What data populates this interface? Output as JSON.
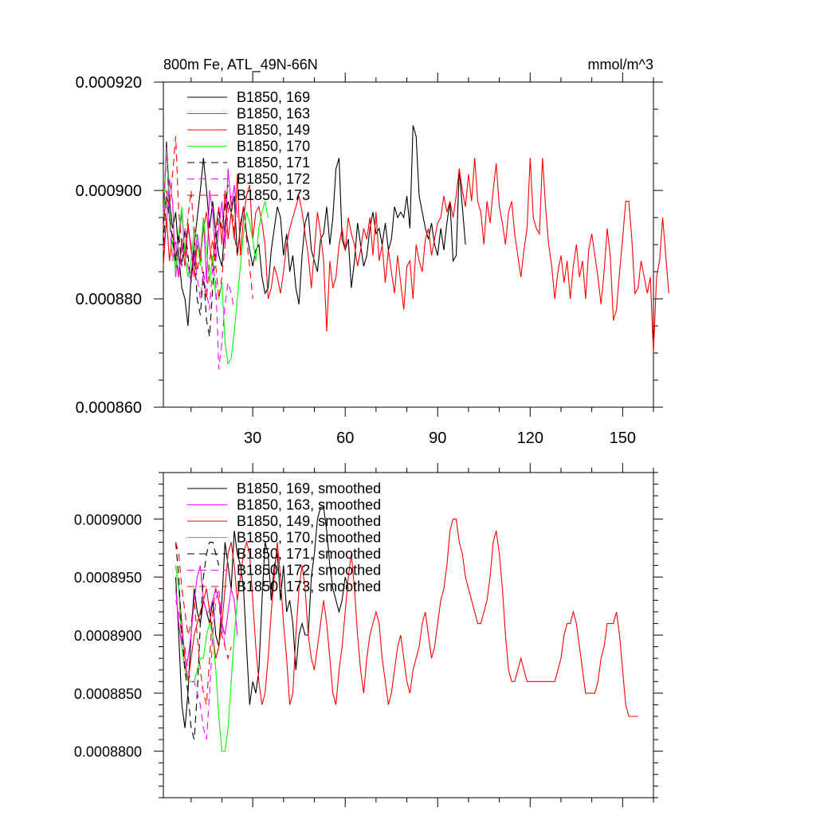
{
  "chart_data": [
    {
      "type": "line",
      "title": "800m Fe, ATL_49N-66N",
      "units": "mmol/m^3",
      "xlabel": "",
      "ylabel": "",
      "xlim": [
        1,
        160
      ],
      "ylim": [
        0.00086,
        0.00092
      ],
      "xticks": [
        30,
        60,
        90,
        120,
        150
      ],
      "xtick_labels": [
        "30",
        "60",
        "90",
        "120",
        "150"
      ],
      "yticks": [
        0.00086,
        0.00088,
        0.0009,
        0.00092
      ],
      "ytick_labels": [
        "0.000860",
        "0.000880",
        "0.000900",
        "0.000920"
      ],
      "legend": "top-left",
      "series": [
        {
          "name": "B1850, 169",
          "color": "#000000",
          "dash": "solid",
          "x_start": 1,
          "values": [
            0.000893,
            0.000909,
            0.000898,
            0.000893,
            0.000896,
            0.000888,
            0.000882,
            0.00088,
            0.000875,
            0.000884,
            0.00089,
            0.000895,
            0.0009,
            0.000906,
            0.0009,
            0.000893,
            0.000898,
            0.000892,
            0.000888,
            0.000886,
            0.000894,
            0.000898,
            0.000896,
            0.000899,
            0.000888,
            0.000893,
            0.000897,
            0.000892,
            0.000889,
            0.000886,
            0.000889,
            0.00089,
            0.000884,
            0.000881,
            0.000882,
            0.000889,
            0.000893,
            0.000897,
            0.000895,
            0.000888,
            0.000892,
            0.000885,
            0.000888,
            0.000882,
            0.000879,
            0.000888,
            0.000894,
            0.000896,
            0.000889,
            0.000887,
            0.000885,
            0.000891,
            0.000892,
            0.000897,
            0.00089,
            0.000895,
            0.000904,
            0.000906,
            0.000891,
            0.000889,
            0.000891,
            0.000882,
            0.000887,
            0.000894,
            0.00089,
            0.000886,
            0.000888,
            0.000893,
            0.000896,
            0.000892,
            0.000893,
            0.00089,
            0.000894,
            0.000889,
            0.000891,
            0.000897,
            0.000895,
            0.000896,
            0.000895,
            0.000899,
            0.000893,
            0.000912,
            0.00091,
            0.000899,
            0.000896,
            0.000893,
            0.000891,
            0.000894,
            0.00089,
            0.000888,
            0.000893,
            0.000889,
            0.000894,
            0.000898,
            0.000887,
            0.000888,
            0.000904,
            0.000897,
            0.00089
          ]
        },
        {
          "name": "B1850, 163",
          "color": "#ff00ff",
          "dash": "solid",
          "x_start": 1,
          "values": [
            0.000889,
            0.000894,
            0.000902,
            0.000898,
            0.000884,
            0.000891,
            0.000896,
            0.000888,
            0.000893,
            0.00089,
            0.000886,
            0.000892,
            0.000888,
            0.000895,
            0.000883,
            0.0009,
            0.000896,
            0.000887,
            0.000893,
            0.000898,
            0.00089,
            0.000904,
            0.000897,
            0.000901,
            0.000895
          ]
        },
        {
          "name": "B1850, 149",
          "color": "#ff0000",
          "dash": "solid",
          "x_start": 1,
          "values": [
            0.000886,
            0.000895,
            0.000887,
            0.000892,
            0.000888,
            0.000884,
            0.000891,
            0.000886,
            0.000894,
            0.000889,
            0.000884,
            0.00089,
            0.000887,
            0.000893,
            0.000896,
            0.00089,
            0.000886,
            0.000893,
            0.000897,
            0.00089,
            0.0009,
            0.000891,
            0.000896,
            0.000891,
            0.000903,
            0.000888,
            0.000895,
            0.000899,
            0.000901,
            0.000891,
            0.000896,
            0.000897,
            0.000894,
            0.00089,
            0.00088,
            0.000882,
            0.000886,
            0.000884,
            0.000881,
            0.000885,
            0.00089,
            0.000893,
            0.000895,
            0.000897,
            0.000899,
            0.000896,
            0.000892,
            0.000888,
            0.000882,
            0.000889,
            0.000896,
            0.000892,
            0.000887,
            0.000874,
            0.000887,
            0.000882,
            0.000884,
            0.00089,
            0.000893,
            0.000889,
            0.000895,
            0.000892,
            0.00089,
            0.000886,
            0.000889,
            0.000893,
            0.000891,
            0.000895,
            0.000888,
            0.000896,
            0.000887,
            0.00089,
            0.000883,
            0.000889,
            0.000885,
            0.000881,
            0.000888,
            0.000883,
            0.000878,
            0.000886,
            0.000887,
            0.00088,
            0.00089,
            0.000887,
            0.000885,
            0.000891,
            0.000893,
            0.000888,
            0.000891,
            0.000894,
            0.000895,
            0.000899,
            0.000896,
            0.000898,
            0.000895,
            0.000899,
            0.000904,
            0.0009,
            0.000897,
            0.000903,
            0.000898,
            0.000906,
            0.000898,
            0.000896,
            0.00089,
            0.000898,
            0.000894,
            0.0009,
            0.000905,
            0.000897,
            0.000894,
            0.00089,
            0.000896,
            0.000898,
            0.000892,
            0.000888,
            0.000884,
            0.000889,
            0.000893,
            0.000906,
            0.000895,
            0.000893,
            0.000892,
            0.000906,
            0.000897,
            0.00089,
            0.000886,
            0.00088,
            0.000885,
            0.000888,
            0.000883,
            0.000887,
            0.00088,
            0.000886,
            0.00089,
            0.000884,
            0.000887,
            0.00088,
            0.000889,
            0.000892,
            0.000888,
            0.000884,
            0.000879,
            0.000885,
            0.000893,
            0.000888,
            0.000876,
            0.000878,
            0.000885,
            0.000891,
            0.000898,
            0.000898,
            0.000891,
            0.000881,
            0.000882,
            0.000887,
            0.000884,
            0.000881,
            0.000884,
            0.00087,
            0.000884,
            0.000887,
            0.000895,
            0.000888,
            0.000881
          ]
        },
        {
          "name": "B1850, 170",
          "color": "#00ff00",
          "dash": "solid",
          "x_start": 1,
          "values": [
            0.000895,
            0.000908,
            0.000896,
            0.00089,
            0.000885,
            0.000892,
            0.000897,
            0.000888,
            0.000884,
            0.000887,
            0.000893,
            0.000891,
            0.000886,
            0.000895,
            0.000889,
            0.000883,
            0.000888,
            0.00088,
            0.00088,
            0.000883,
            0.000872,
            0.000868,
            0.000869,
            0.000874,
            0.00088,
            0.000886,
            0.000892,
            0.000896,
            0.000894,
            0.000891,
            0.000887,
            0.000893,
            0.000896,
            0.000898,
            0.000895
          ]
        },
        {
          "name": "B1850, 171",
          "color": "#000000",
          "dash": "dashed",
          "x_start": 1,
          "values": [
            0.00089,
            0.000899,
            0.000895,
            0.000891,
            0.000887,
            0.000892,
            0.000886,
            0.000893,
            0.000888,
            0.000883,
            0.000889,
            0.00088,
            0.000877,
            0.000885,
            0.000876,
            0.000873,
            0.000882,
            0.00089,
            0.000896,
            0.000893,
            0.000897,
            0.000901
          ]
        },
        {
          "name": "B1850, 172",
          "color": "#ff00ff",
          "dash": "dashed",
          "x_start": 1,
          "values": [
            0.000896,
            0.000908,
            0.000894,
            0.000887,
            0.000891,
            0.000884,
            0.000889,
            0.000893,
            0.000886,
            0.000883,
            0.000888,
            0.000884,
            0.00088,
            0.000885,
            0.000881,
            0.000878,
            0.000886,
            0.000883,
            0.000867,
            0.000872,
            0.000879,
            0.000883,
            0.000881,
            0.000878
          ]
        },
        {
          "name": "B1850, 173",
          "color": "#ff0000",
          "dash": "dashed",
          "x_start": 1,
          "values": [
            0.000893,
            0.0009,
            0.000897,
            0.000903,
            0.00091,
            0.000896,
            0.00089,
            0.000888,
            0.000895,
            0.0009,
            0.000892,
            0.000885,
            0.000889,
            0.000883,
            0.00088,
            0.000887,
            0.000891,
            0.000886,
            0.00088,
            0.000884,
            0.00089,
            0.000896,
            0.000899,
            0.000892,
            0.000888,
            0.000894,
            0.000897,
            0.000891,
            0.000886,
            0.00088
          ]
        }
      ]
    },
    {
      "type": "line",
      "title": "",
      "xlabel": "",
      "ylabel": "",
      "xlim": [
        1,
        160
      ],
      "ylim": [
        0.000876,
        0.000904
      ],
      "xticks": [
        30,
        60,
        90,
        120,
        150
      ],
      "xtick_labels": [],
      "yticks": [
        0.00088,
        0.000885,
        0.00089,
        0.000895,
        0.0009
      ],
      "ytick_labels": [
        "0.0008800",
        "0.0008850",
        "0.0008900",
        "0.0008950",
        "0.0009000"
      ],
      "legend": "top-left",
      "series": [
        {
          "name": "B1850, 169, smoothed",
          "color": "#000000",
          "dash": "solid",
          "x_start": 5,
          "values": [
            0.000895,
            0.00089,
            0.000884,
            0.000882,
            0.000885,
            0.00089,
            0.000894,
            0.000892,
            0.000891,
            0.000893,
            0.000892,
            0.000891,
            0.000893,
            0.00089,
            0.000889,
            0.000893,
            0.000898,
            0.000896,
            0.000894,
            0.000899,
            0.000897,
            0.000896,
            0.000894,
            0.000889,
            0.000884,
            0.000886,
            0.000885,
            0.000887,
            0.000893,
            0.000898,
            0.000897,
            0.000893,
            0.000896,
            0.000897,
            0.000893,
            0.000896,
            0.000892,
            0.000893,
            0.000891,
            0.000887,
            0.00089,
            0.000891,
            0.00089,
            0.00089,
            0.000895,
            0.000897,
            0.0009,
            0.000901,
            0.000901,
            0.000899,
            0.000896,
            0.000894,
            0.000893,
            0.000892,
            0.000893,
            0.000895,
            0.000894
          ]
        },
        {
          "name": "B1850, 163, smoothed",
          "color": "#ff00ff",
          "dash": "solid",
          "x_start": 5,
          "values": [
            0.000894,
            0.000891,
            0.000889,
            0.000887,
            0.000888,
            0.00089,
            0.000893,
            0.000895,
            0.000896,
            0.000893,
            0.000892,
            0.000892,
            0.000893,
            0.000894,
            0.000893,
            0.000891,
            0.00089,
            0.000892,
            0.000894,
            0.000893,
            0.00089
          ]
        },
        {
          "name": "B1850, 149, smoothed",
          "color": "#ff0000",
          "dash": "solid",
          "x_start": 5,
          "values": [
            0.000896,
            0.000894,
            0.000891,
            0.000888,
            0.000886,
            0.000888,
            0.00089,
            0.000891,
            0.000892,
            0.000893,
            0.000894,
            0.000892,
            0.00089,
            0.000888,
            0.000889,
            0.000891,
            0.000894,
            0.000897,
            0.000898,
            0.000896,
            0.000893,
            0.000895,
            0.000897,
            0.000898,
            0.000897,
            0.000893,
            0.000889,
            0.000886,
            0.000884,
            0.000885,
            0.000888,
            0.000892,
            0.000895,
            0.000898,
            0.000895,
            0.000891,
            0.000888,
            0.000884,
            0.000885,
            0.00089,
            0.000894,
            0.000896,
            0.000894,
            0.00089,
            0.000888,
            0.000887,
            0.000889,
            0.000891,
            0.000893,
            0.000891,
            0.000888,
            0.000885,
            0.000884,
            0.000887,
            0.000889,
            0.000892,
            0.000895,
            0.000897,
            0.000894,
            0.00089,
            0.000887,
            0.000885,
            0.000888,
            0.00089,
            0.000891,
            0.000892,
            0.000891,
            0.000888,
            0.000886,
            0.000884,
            0.000885,
            0.000887,
            0.000889,
            0.00089,
            0.000888,
            0.000886,
            0.000885,
            0.000887,
            0.000888,
            0.000889,
            0.000891,
            0.000892,
            0.00089,
            0.000888,
            0.000889,
            0.000891,
            0.000893,
            0.000894,
            0.000896,
            0.000899,
            0.0009,
            0.0009,
            0.000898,
            0.000897,
            0.000895,
            0.000894,
            0.000893,
            0.000892,
            0.000891,
            0.000891,
            0.000892,
            0.000893,
            0.000895,
            0.000898,
            0.000899,
            0.000897,
            0.000894,
            0.00089,
            0.000887,
            0.000886,
            0.000886,
            0.000887,
            0.000888,
            0.000887,
            0.000886,
            0.000886,
            0.000886,
            0.000886,
            0.000886,
            0.000886,
            0.000886,
            0.000886,
            0.000886,
            0.000886,
            0.000887,
            0.000888,
            0.00089,
            0.000891,
            0.000891,
            0.000892,
            0.000891,
            0.000889,
            0.000887,
            0.000885,
            0.000885,
            0.000885,
            0.000885,
            0.000886,
            0.000888,
            0.000889,
            0.000891,
            0.000891,
            0.000891,
            0.000892,
            0.00089,
            0.000887,
            0.000884,
            0.000883,
            0.000883,
            0.000883,
            0.000883
          ]
        },
        {
          "name": "B1850, 170, smoothed",
          "color": "#00ff00",
          "dash": "solid",
          "x_start": 5,
          "values": [
            0.000896,
            0.000894,
            0.000889,
            0.000887,
            0.000886,
            0.000886,
            0.000886,
            0.000887,
            0.000888,
            0.000888,
            0.00089,
            0.000891,
            0.00089,
            0.000887,
            0.000883,
            0.00088,
            0.00088,
            0.000882,
            0.000886,
            0.00089,
            0.000893
          ]
        },
        {
          "name": "B1850, 171, smoothed",
          "color": "#000000",
          "dash": "dashed",
          "x_start": 5,
          "values": [
            0.000898,
            0.000895,
            0.00089,
            0.000887,
            0.000885,
            0.000882,
            0.000881,
            0.000885,
            0.000891,
            0.000895,
            0.000897,
            0.000898,
            0.000898,
            0.000897,
            0.000896
          ]
        },
        {
          "name": "B1850, 172, smoothed",
          "color": "#ff00ff",
          "dash": "dashed",
          "x_start": 5,
          "values": [
            0.000893,
            0.000892,
            0.00089,
            0.000889,
            0.000887,
            0.000886,
            0.000886,
            0.000885,
            0.000884,
            0.000882,
            0.000881,
            0.000885,
            0.00089,
            0.000893,
            0.000894,
            0.000891,
            0.000889
          ]
        },
        {
          "name": "B1850, 173, smoothed",
          "color": "#ff0000",
          "dash": "dashed",
          "x_start": 5,
          "values": [
            0.000898,
            0.000897,
            0.000894,
            0.000892,
            0.00089,
            0.000891,
            0.000893,
            0.00089,
            0.000887,
            0.000885,
            0.000884,
            0.000888,
            0.000892,
            0.000894,
            0.000893,
            0.00089,
            0.000889,
            0.000888,
            0.000889
          ]
        }
      ]
    }
  ]
}
